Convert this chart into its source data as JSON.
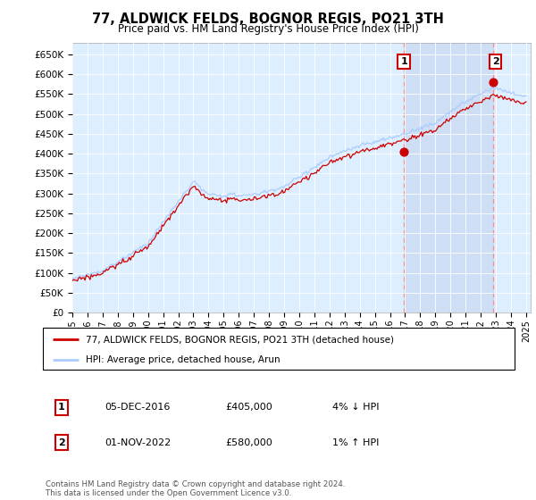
{
  "title": "77, ALDWICK FELDS, BOGNOR REGIS, PO21 3TH",
  "subtitle": "Price paid vs. HM Land Registry's House Price Index (HPI)",
  "legend_line1": "77, ALDWICK FELDS, BOGNOR REGIS, PO21 3TH (detached house)",
  "legend_line2": "HPI: Average price, detached house, Arun",
  "annotation1_date": "05-DEC-2016",
  "annotation1_price": "£405,000",
  "annotation1_hpi": "4% ↓ HPI",
  "annotation2_date": "01-NOV-2022",
  "annotation2_price": "£580,000",
  "annotation2_hpi": "1% ↑ HPI",
  "footer": "Contains HM Land Registry data © Crown copyright and database right 2024.\nThis data is licensed under the Open Government Licence v3.0.",
  "hpi_color": "#aaccff",
  "price_color": "#cc0000",
  "marker_color": "#cc0000",
  "annotation_box_color": "#cc0000",
  "vline_color": "#ff8888",
  "bg_chart": "#ddeeff",
  "shade_color": "#c8d8f0",
  "ylim": [
    0,
    680000
  ],
  "yticks": [
    0,
    50000,
    100000,
    150000,
    200000,
    250000,
    300000,
    350000,
    400000,
    450000,
    500000,
    550000,
    600000,
    650000
  ],
  "year_start": 1995,
  "year_end": 2025,
  "sale1_year": 2016.92,
  "sale1_price": 405000,
  "sale2_year": 2022.83,
  "sale2_price": 580000
}
